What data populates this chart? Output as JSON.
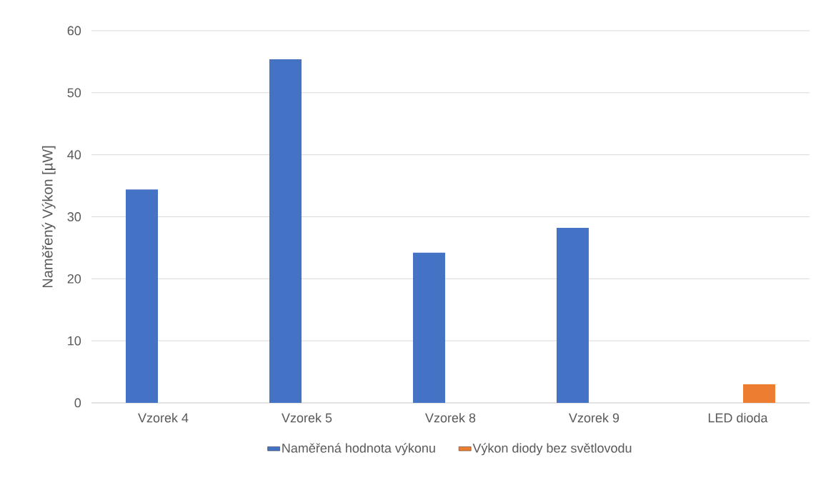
{
  "chart_data": {
    "type": "bar",
    "ylabel": "Naměřený Výkon [µW]",
    "categories": [
      "Vzorek 4",
      "Vzorek 5",
      "Vzorek 8",
      "Vzorek 9",
      "LED dioda"
    ],
    "series": [
      {
        "name": "Naměřená hodnota výkonu",
        "color": "#4472c4",
        "values": [
          34.4,
          55.4,
          24.2,
          28.2,
          null
        ]
      },
      {
        "name": "Výkon diody bez světlovodu",
        "color": "#ed7d31",
        "values": [
          null,
          null,
          null,
          null,
          3.0
        ]
      }
    ],
    "ylim": [
      0,
      60
    ],
    "yticks": [
      0,
      10,
      20,
      30,
      40,
      50,
      60
    ],
    "grid": "y",
    "legend": "bottom"
  }
}
